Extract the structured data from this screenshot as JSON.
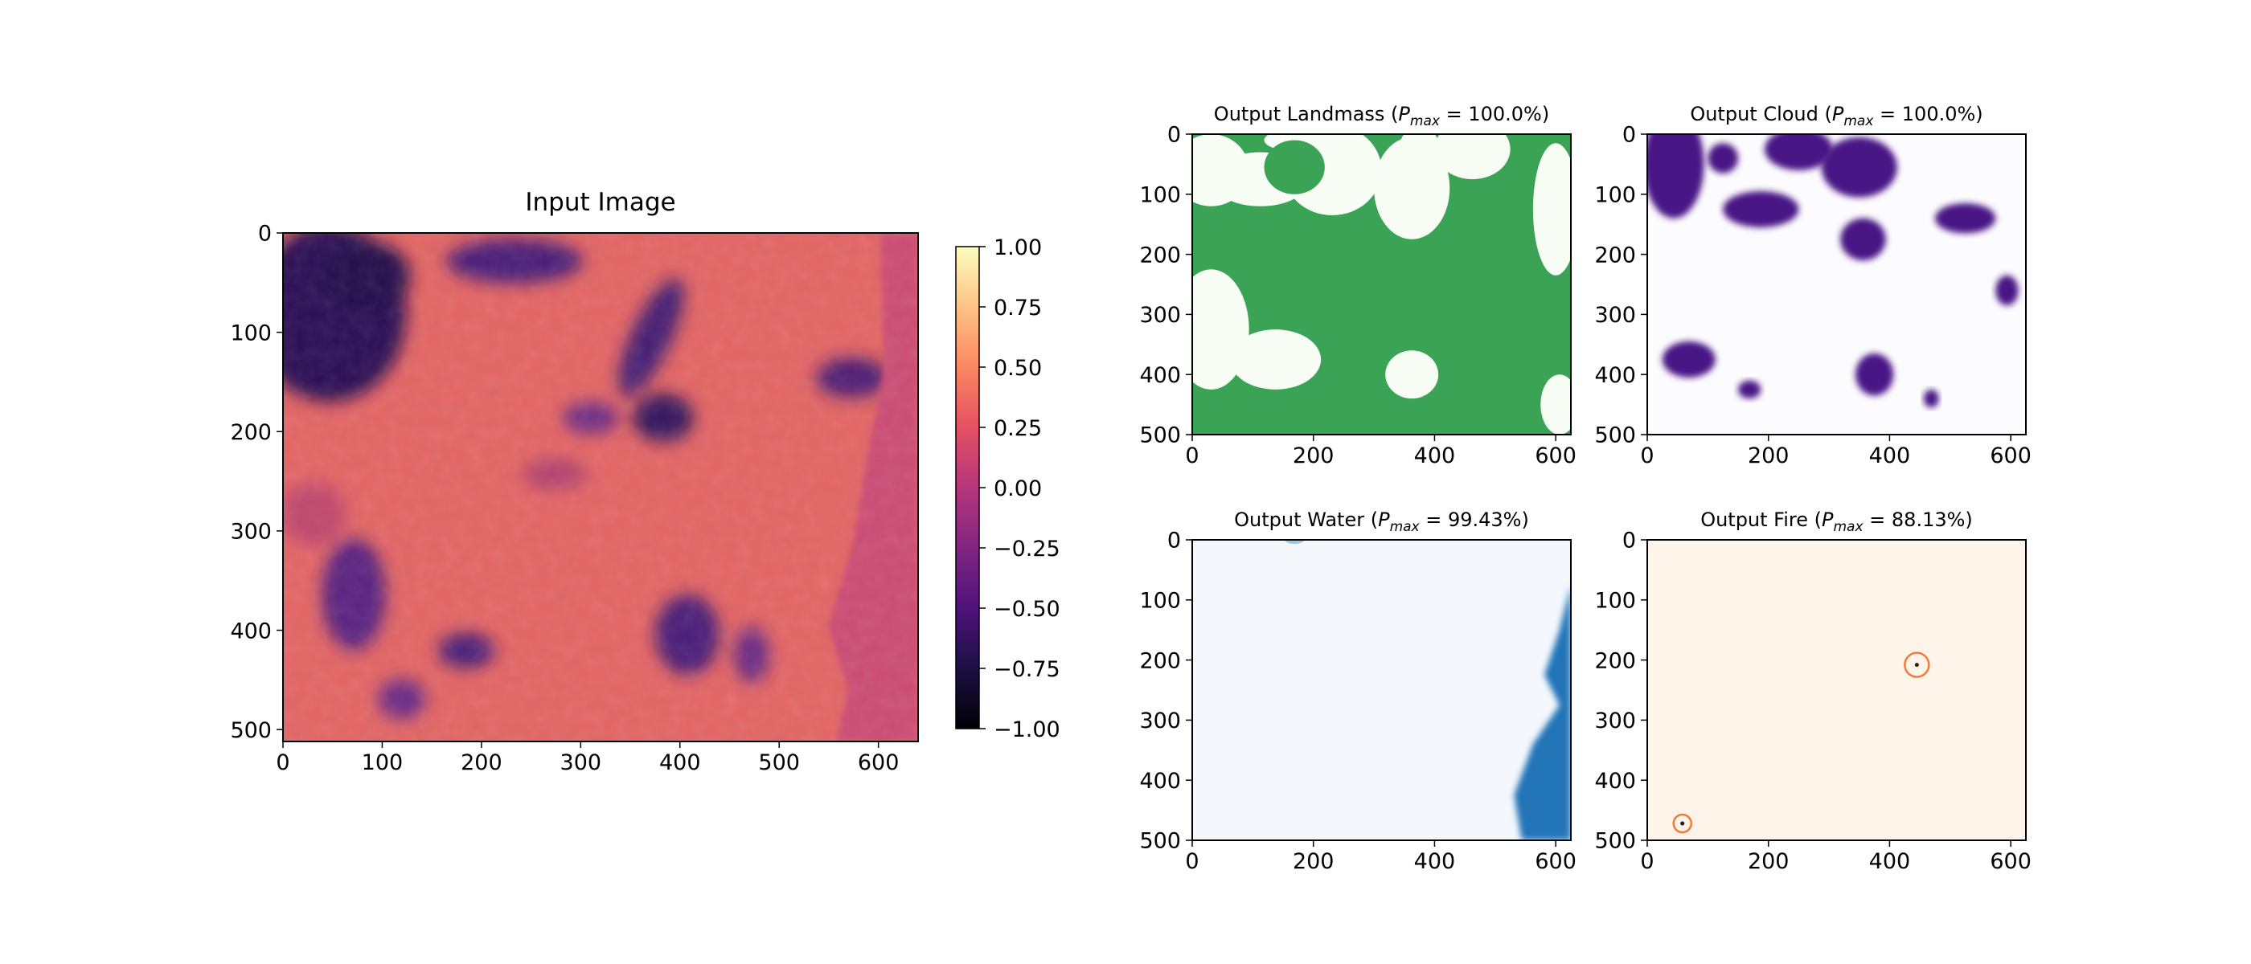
{
  "chart_data": [
    {
      "type": "heatmap",
      "title": "Input Image",
      "xlim": [
        0,
        640
      ],
      "ylim": [
        512,
        0
      ],
      "xticks": [
        0,
        100,
        200,
        300,
        400,
        500,
        600
      ],
      "yticks": [
        0,
        100,
        200,
        300,
        400,
        500
      ],
      "colorbar": {
        "range": [
          -1.0,
          1.0
        ],
        "ticks": [
          "1.00",
          "0.75",
          "0.50",
          "0.25",
          "0.00",
          "−0.25",
          "−0.50",
          "−0.75",
          "−1.00"
        ],
        "colormap": "magma"
      }
    },
    {
      "type": "heatmap",
      "title": "Output Landmass",
      "pmax": "100.0%",
      "xlim": [
        0,
        625
      ],
      "ylim": [
        500,
        0
      ],
      "xticks": [
        0,
        200,
        400,
        600
      ],
      "yticks": [
        0,
        100,
        200,
        300,
        400,
        500
      ],
      "colormap": "Greens",
      "color": "#3aa356"
    },
    {
      "type": "heatmap",
      "title": "Output Cloud",
      "pmax": "100.0%",
      "xlim": [
        0,
        625
      ],
      "ylim": [
        500,
        0
      ],
      "xticks": [
        0,
        200,
        400,
        600
      ],
      "yticks": [
        0,
        100,
        200,
        300,
        400,
        500
      ],
      "colormap": "Purples",
      "color": "#4a1486"
    },
    {
      "type": "heatmap",
      "title": "Output Water",
      "pmax": "99.43%",
      "xlim": [
        0,
        625
      ],
      "ylim": [
        500,
        0
      ],
      "xticks": [
        0,
        200,
        400,
        600
      ],
      "yticks": [
        0,
        100,
        200,
        300,
        400,
        500
      ],
      "colormap": "Blues",
      "color": "#2474b7"
    },
    {
      "type": "heatmap",
      "title": "Output Fire",
      "pmax": "88.13%",
      "xlim": [
        0,
        625
      ],
      "ylim": [
        500,
        0
      ],
      "xticks": [
        0,
        200,
        400,
        600
      ],
      "yticks": [
        0,
        100,
        200,
        300,
        400,
        500
      ],
      "colormap": "Oranges",
      "color": "#f27b35",
      "detections": [
        {
          "x": 445,
          "y": 208
        },
        {
          "x": 58,
          "y": 472
        }
      ]
    }
  ]
}
